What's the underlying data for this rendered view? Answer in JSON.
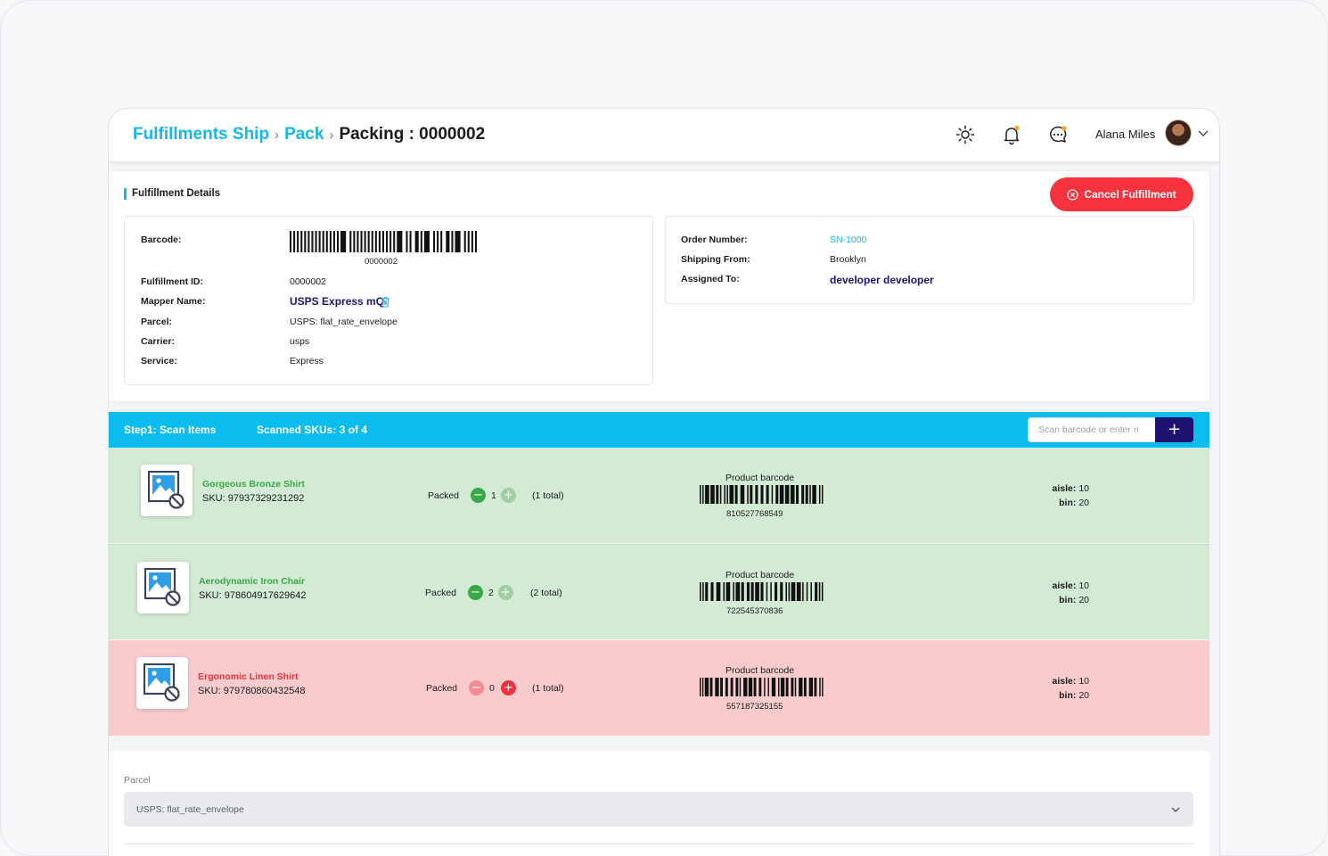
{
  "header": {
    "breadcrumb": [
      {
        "label": "Fulfillments Ship"
      },
      {
        "label": "Pack"
      },
      {
        "label": "Packing : 0000002"
      }
    ],
    "icons": [
      "sun-icon",
      "bell-icon",
      "chat-icon"
    ],
    "user_name": "Alana Miles",
    "accent_color": "#19b5e4",
    "notification_dot_color": "#f5a623"
  },
  "details": {
    "section_title": "Fulfillment Details",
    "cancel_label": "Cancel Fulfillment",
    "barcode_label": "Barcode:",
    "barcode_value": "0000002",
    "left_rows": [
      {
        "label": "Fulfillment ID:",
        "value": "0000002"
      },
      {
        "label": "Mapper Name:",
        "value": "USPS Express mQ"
      },
      {
        "label": "Parcel:",
        "value": "USPS: flat_rate_envelope"
      },
      {
        "label": "Carrier:",
        "value": "usps"
      },
      {
        "label": "Service:",
        "value": "Express"
      }
    ],
    "right_rows": [
      {
        "label": "Order Number:",
        "value": "SN-1000"
      },
      {
        "label": "Shipping From:",
        "value": "Brooklyn"
      },
      {
        "label": "Assigned To:",
        "value": "developer developer"
      }
    ]
  },
  "scan": {
    "step_label": "Step1: Scan Items",
    "scanned_label": "Scanned SKUs: 3 of 4",
    "input_placeholder": "Scan barcode or enter n",
    "add_label": "+",
    "bar_color": "#0bbdee"
  },
  "items": [
    {
      "name": "Gorgeous Bronze Shirt",
      "sku": "SKU: 979373292312​92",
      "packed_label": "Packed",
      "qty": "1",
      "total": "(1 total)",
      "barcode_label": "Product barcode",
      "barcode": "810527768549",
      "aisle_label": "aisle:",
      "aisle": "10",
      "bin_label": "bin:",
      "bin": "20",
      "status": "complete"
    },
    {
      "name": "Aerodynamic Iron Chair",
      "sku": "SKU: 978604917629642",
      "packed_label": "Packed",
      "qty": "2",
      "total": "(2 total)",
      "barcode_label": "Product barcode",
      "barcode": "722545370836",
      "aisle_label": "aisle:",
      "aisle": "10",
      "bin_label": "bin:",
      "bin": "20",
      "status": "complete"
    },
    {
      "name": "Ergonomic Linen Shirt",
      "sku": "SKU: 979780860432548",
      "packed_label": "Packed",
      "qty": "0",
      "total": "(1 total)",
      "barcode_label": "Product barcode",
      "barcode": "557187325155",
      "aisle_label": "aisle:",
      "aisle": "10",
      "bin_label": "bin:",
      "bin": "20",
      "status": "missing"
    }
  ],
  "parcel": {
    "label": "Parcel",
    "selected": "USPS: flat_rate_envelope"
  }
}
